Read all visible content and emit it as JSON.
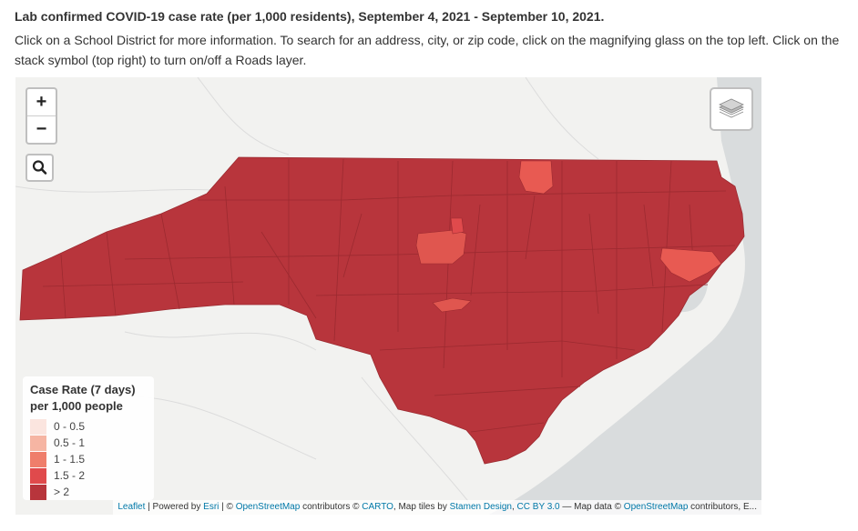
{
  "header": {
    "title": "Lab confirmed COVID-19 case rate (per 1,000 residents), September 4, 2021 - September 10, 2021.",
    "instructions": "Click on a School District for more information. To search for an address, city, or zip code, click on the magnifying glass on the top left. Click on the stack symbol (top right) to turn on/off a Roads layer."
  },
  "map": {
    "controls": {
      "zoom_in": "+",
      "zoom_out": "−"
    },
    "icons": {
      "search": "search-icon",
      "layers": "layers-icon"
    },
    "colors": {
      "land": "#f2f2f0",
      "water": "#d9dcdd",
      "district": "#b8353c",
      "district_low": "#e34a4a",
      "district_lower": "#ed6b5e",
      "border": "#9c2a30"
    }
  },
  "legend": {
    "title_line1": "Case Rate (7 days)",
    "title_line2": "per 1,000 people",
    "items": [
      {
        "label": "0 - 0.5",
        "color": "#fbe5df"
      },
      {
        "label": "0.5 - 1",
        "color": "#f6b5a3"
      },
      {
        "label": "1 - 1.5",
        "color": "#ef7e6b"
      },
      {
        "label": "1.5 - 2",
        "color": "#e04a4c"
      },
      {
        "label": "> 2",
        "color": "#b8353c"
      }
    ]
  },
  "attribution": {
    "leaflet": "Leaflet",
    "powered": " | Powered by ",
    "esri": "Esri",
    "sep1": " | © ",
    "osm1": "OpenStreetMap",
    "contributors1": " contributors © ",
    "carto": "CARTO",
    "tiles": ", Map tiles by ",
    "stamen": "Stamen Design",
    "comma": ", ",
    "ccby": "CC BY 3.0",
    "mapdata": " — Map data © ",
    "osm2": "OpenStreetMap",
    "contributors2": " contributors, E..."
  }
}
